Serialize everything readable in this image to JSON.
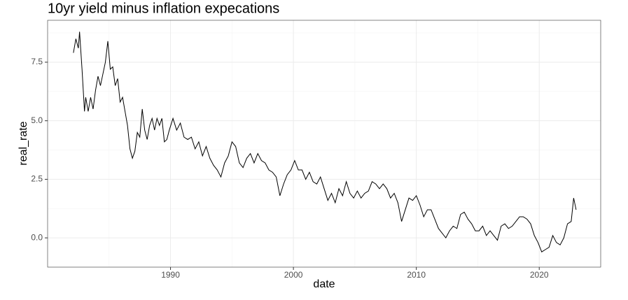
{
  "chart_data": {
    "type": "line",
    "title": "10yr yield minus inflation expecations",
    "x_label": "date",
    "y_label": "real_rate",
    "color": "#000000",
    "grid": true,
    "xlim": [
      1980.0,
      2025.0
    ],
    "ylim": [
      -1.25,
      9.29
    ],
    "xticks": [
      1990,
      2000,
      2010,
      2020
    ],
    "xminor": [
      1985,
      1995,
      2005,
      2015,
      2025
    ],
    "yticks": [
      {
        "value": 0,
        "label": "0.0"
      },
      {
        "value": 2.5,
        "label": "2.5"
      },
      {
        "value": 5,
        "label": "5.0"
      },
      {
        "value": 7.5,
        "label": "7.5"
      }
    ],
    "yminor": [
      -1.25,
      1.25,
      3.75,
      6.25,
      8.75
    ],
    "x": [
      1982.1,
      1982.3,
      1982.5,
      1982.6,
      1982.8,
      1983.0,
      1983.1,
      1983.3,
      1983.5,
      1983.7,
      1983.9,
      1984.1,
      1984.3,
      1984.5,
      1984.7,
      1984.9,
      1985.1,
      1985.3,
      1985.5,
      1985.7,
      1985.9,
      1986.1,
      1986.3,
      1986.5,
      1986.7,
      1986.9,
      1987.1,
      1987.3,
      1987.5,
      1987.7,
      1987.9,
      1988.1,
      1988.3,
      1988.5,
      1988.7,
      1988.9,
      1989.1,
      1989.3,
      1989.5,
      1989.7,
      1989.9,
      1990.2,
      1990.5,
      1990.8,
      1991.1,
      1991.4,
      1991.7,
      1992.0,
      1992.3,
      1992.6,
      1992.9,
      1993.2,
      1993.5,
      1993.8,
      1994.1,
      1994.4,
      1994.7,
      1995.0,
      1995.3,
      1995.6,
      1995.9,
      1996.2,
      1996.5,
      1996.8,
      1997.1,
      1997.4,
      1997.7,
      1998.0,
      1998.3,
      1998.6,
      1998.9,
      1999.2,
      1999.5,
      1999.8,
      2000.1,
      2000.4,
      2000.7,
      2001.0,
      2001.3,
      2001.6,
      2001.9,
      2002.2,
      2002.5,
      2002.8,
      2003.1,
      2003.4,
      2003.7,
      2004.0,
      2004.3,
      2004.6,
      2004.9,
      2005.2,
      2005.5,
      2005.8,
      2006.1,
      2006.4,
      2006.7,
      2007.0,
      2007.3,
      2007.6,
      2007.9,
      2008.2,
      2008.5,
      2008.8,
      2009.1,
      2009.4,
      2009.7,
      2010.0,
      2010.3,
      2010.6,
      2010.9,
      2011.2,
      2011.5,
      2011.8,
      2012.1,
      2012.4,
      2012.7,
      2013.0,
      2013.3,
      2013.6,
      2013.9,
      2014.2,
      2014.5,
      2014.8,
      2015.1,
      2015.4,
      2015.7,
      2016.0,
      2016.3,
      2016.6,
      2016.9,
      2017.2,
      2017.5,
      2017.8,
      2018.1,
      2018.4,
      2018.7,
      2019.0,
      2019.3,
      2019.6,
      2019.9,
      2020.2,
      2020.5,
      2020.8,
      2021.1,
      2021.4,
      2021.7,
      2022.0,
      2022.3,
      2022.6,
      2022.8,
      2023.0
    ],
    "values": [
      7.9,
      8.5,
      8.1,
      8.8,
      7.2,
      5.4,
      6.0,
      5.4,
      6.0,
      5.5,
      6.3,
      6.9,
      6.5,
      7.0,
      7.5,
      8.4,
      7.2,
      7.3,
      6.5,
      6.8,
      5.8,
      6.0,
      5.4,
      4.8,
      3.8,
      3.4,
      3.7,
      4.5,
      4.3,
      5.5,
      4.6,
      4.2,
      4.8,
      5.1,
      4.6,
      5.1,
      4.8,
      5.1,
      4.1,
      4.2,
      4.6,
      5.1,
      4.6,
      4.9,
      4.3,
      4.2,
      4.3,
      3.8,
      4.1,
      3.5,
      3.9,
      3.4,
      3.1,
      2.9,
      2.6,
      3.2,
      3.5,
      4.1,
      3.9,
      3.2,
      3.0,
      3.4,
      3.6,
      3.2,
      3.6,
      3.3,
      3.2,
      2.9,
      2.8,
      2.6,
      1.8,
      2.3,
      2.7,
      2.9,
      3.3,
      2.9,
      2.9,
      2.5,
      2.8,
      2.4,
      2.3,
      2.6,
      2.1,
      1.6,
      1.9,
      1.5,
      2.1,
      1.8,
      2.4,
      1.9,
      1.7,
      2.0,
      1.7,
      1.9,
      2.0,
      2.4,
      2.3,
      2.1,
      2.3,
      2.1,
      1.7,
      1.9,
      1.5,
      0.7,
      1.2,
      1.7,
      1.6,
      1.8,
      1.4,
      0.9,
      1.2,
      1.2,
      0.8,
      0.4,
      0.2,
      0.0,
      0.3,
      0.5,
      0.4,
      1.0,
      1.1,
      0.8,
      0.6,
      0.3,
      0.3,
      0.5,
      0.1,
      0.3,
      0.1,
      -0.1,
      0.5,
      0.6,
      0.4,
      0.5,
      0.7,
      0.9,
      0.9,
      0.8,
      0.6,
      0.1,
      -0.2,
      -0.6,
      -0.5,
      -0.4,
      0.1,
      -0.2,
      -0.3,
      0.0,
      0.6,
      0.7,
      1.7,
      1.2
    ]
  }
}
